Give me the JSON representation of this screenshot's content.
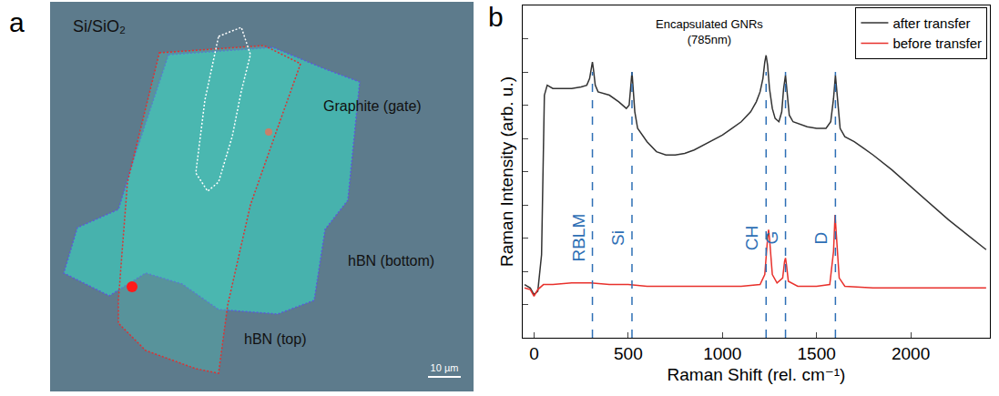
{
  "image_panel": {
    "panel_label": "a",
    "substrate": "Si/SiO₂",
    "graphite": "Graphite (gate)",
    "hbn_bottom": "hBN (bottom)",
    "hbn_top": "hBN (top)",
    "scale_bar": "10 µm"
  },
  "chart_data": {
    "type": "line",
    "panel_label": "b",
    "xlabel": "Raman Shift (rel. cm⁻¹)",
    "ylabel": "Raman Intensity (arb. u.)",
    "annotation": [
      "Encapsulated GNRs",
      "(785nm)"
    ],
    "xlim": [
      -60,
      2420
    ],
    "xticks": [
      0,
      500,
      1000,
      1500,
      2000
    ],
    "ylim": [
      0,
      10
    ],
    "yticks": [
      0,
      1,
      2,
      3,
      4,
      5,
      6,
      7,
      8,
      9,
      10
    ],
    "tick_labels": "x",
    "legend": "top right",
    "grid": false,
    "peak_lines": [
      {
        "label": "RBLM",
        "x": 310
      },
      {
        "label": "Si",
        "x": 520
      },
      {
        "label": "CH",
        "x": 1232
      },
      {
        "label": "G",
        "x": 1335
      },
      {
        "label": "D",
        "x": 1600
      }
    ],
    "series": [
      {
        "name": "after transfer",
        "color": "#333333",
        "x": [
          -50,
          -20,
          0,
          20,
          40,
          55,
          70,
          100,
          150,
          200,
          250,
          280,
          295,
          305,
          310,
          315,
          325,
          340,
          370,
          400,
          450,
          490,
          505,
          515,
          520,
          525,
          535,
          550,
          600,
          650,
          700,
          750,
          800,
          850,
          900,
          950,
          1000,
          1050,
          1100,
          1150,
          1180,
          1200,
          1215,
          1225,
          1232,
          1240,
          1250,
          1265,
          1280,
          1300,
          1315,
          1325,
          1335,
          1345,
          1355,
          1375,
          1400,
          1450,
          1500,
          1550,
          1575,
          1590,
          1600,
          1610,
          1625,
          1650,
          1700,
          1750,
          1800,
          1900,
          2000,
          2100,
          2200,
          2300,
          2400
        ],
        "values": [
          1.6,
          1.5,
          1.3,
          1.4,
          2.5,
          7.3,
          7.6,
          7.5,
          7.5,
          7.5,
          7.55,
          7.6,
          7.8,
          8.2,
          8.3,
          8.1,
          7.6,
          7.4,
          7.35,
          7.3,
          7.1,
          6.9,
          7.0,
          7.6,
          8.0,
          7.6,
          6.8,
          6.3,
          5.9,
          5.6,
          5.5,
          5.5,
          5.55,
          5.65,
          5.8,
          5.95,
          6.1,
          6.3,
          6.5,
          6.8,
          7.1,
          7.4,
          7.8,
          8.3,
          8.5,
          8.2,
          7.5,
          6.9,
          6.6,
          6.5,
          6.8,
          7.5,
          7.9,
          7.3,
          6.7,
          6.5,
          6.45,
          6.35,
          6.3,
          6.3,
          6.5,
          7.2,
          7.9,
          7.2,
          6.3,
          6.05,
          5.9,
          5.7,
          5.5,
          5.05,
          4.55,
          4.05,
          3.55,
          3.1,
          2.65
        ]
      },
      {
        "name": "before transfer",
        "color": "#e8312c",
        "x": [
          -50,
          -20,
          0,
          20,
          50,
          100,
          200,
          300,
          400,
          500,
          600,
          700,
          800,
          900,
          1000,
          1100,
          1200,
          1225,
          1240,
          1245,
          1250,
          1265,
          1290,
          1320,
          1330,
          1335,
          1340,
          1350,
          1400,
          1500,
          1570,
          1590,
          1598,
          1605,
          1620,
          1650,
          1800,
          2000,
          2200,
          2400
        ],
        "values": [
          1.5,
          1.45,
          1.25,
          1.45,
          1.6,
          1.6,
          1.65,
          1.65,
          1.6,
          1.6,
          1.55,
          1.55,
          1.55,
          1.55,
          1.55,
          1.55,
          1.6,
          1.9,
          3.0,
          3.25,
          3.0,
          1.9,
          1.65,
          1.8,
          2.3,
          2.4,
          2.2,
          1.7,
          1.55,
          1.55,
          1.6,
          2.6,
          3.7,
          3.0,
          1.8,
          1.55,
          1.5,
          1.5,
          1.5,
          1.5
        ]
      }
    ]
  }
}
